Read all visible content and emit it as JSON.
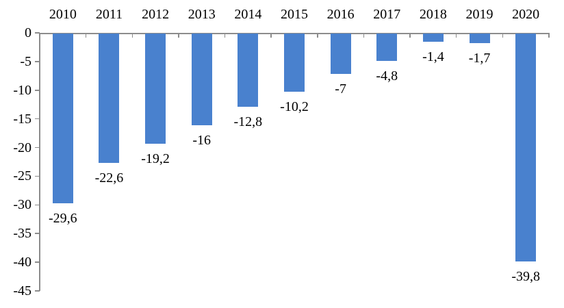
{
  "chart_data": {
    "type": "bar",
    "title": "",
    "xlabel": "",
    "ylabel": "",
    "categories": [
      "2010",
      "2011",
      "2012",
      "2013",
      "2014",
      "2015",
      "2016",
      "2017",
      "2018",
      "2019",
      "2020"
    ],
    "values": [
      -29.6,
      -22.6,
      -19.2,
      -16,
      -12.8,
      -10.2,
      -7,
      -4.8,
      -1.4,
      -1.7,
      -39.8
    ],
    "data_labels": [
      "-29,6",
      "-22,6",
      "-19,2",
      "-16",
      "-12,8",
      "-10,2",
      "-7",
      "-4,8",
      "-1,4",
      "-1,7",
      "-39,8"
    ],
    "ylim": [
      -45,
      0
    ],
    "yticks": [
      0,
      -5,
      -10,
      -15,
      -20,
      -25,
      -30,
      -35,
      -40,
      -45
    ],
    "ytick_labels": [
      "0",
      "-5",
      "-10",
      "-15",
      "-20",
      "-25",
      "-30",
      "-35",
      "-40",
      "-45"
    ],
    "grid": false,
    "legend_position": "none",
    "category_axis_position": "top",
    "data_label_position": "outside-end-below-bar",
    "decimal_separator": ",",
    "colors": {
      "bar": "#4981CE",
      "axis": "#8C8C8C",
      "text": "#000000",
      "background": "#FFFFFF"
    }
  }
}
